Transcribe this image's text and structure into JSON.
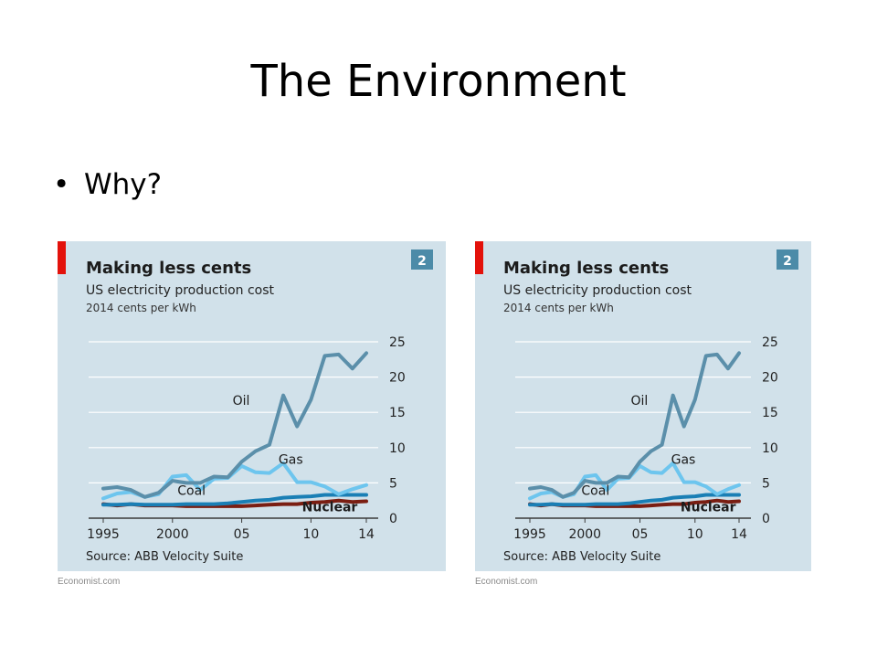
{
  "slide": {
    "title": "The Environment",
    "bullet_symbol": "•",
    "bullet_text": "Why?"
  },
  "chart_panel": {
    "credit": "Economist.com",
    "background_color": "#d1e1ea",
    "flag_color": "#e3120b",
    "badge_color": "#4c8ba8"
  },
  "chart_data": [
    {
      "type": "line",
      "title": "Making less cents",
      "subtitle": "US electricity production cost",
      "unit_label": "2014 cents per kWh",
      "badge": "2",
      "source": "Source: ABB Velocity Suite",
      "x": [
        1995,
        1996,
        1997,
        1998,
        1999,
        2000,
        2001,
        2002,
        2003,
        2004,
        2005,
        2006,
        2007,
        2008,
        2009,
        2010,
        2011,
        2012,
        2013,
        2014
      ],
      "x_ticks": [
        1995,
        2000,
        2005,
        2010,
        2014
      ],
      "x_tick_labels": [
        "1995",
        "2000",
        "05",
        "10",
        "14"
      ],
      "ylim": [
        0,
        25
      ],
      "y_ticks": [
        0,
        5,
        10,
        15,
        20,
        25
      ],
      "y_axis_position": "right",
      "grid": "horizontal",
      "series": [
        {
          "name": "Oil",
          "color": "#5b8faa",
          "values": [
            4.2,
            4.4,
            4.0,
            3.0,
            3.6,
            5.3,
            5.0,
            5.0,
            5.9,
            5.8,
            8.0,
            9.5,
            10.4,
            17.4,
            13.0,
            16.8,
            23.0,
            23.2,
            21.2,
            23.4
          ]
        },
        {
          "name": "Gas",
          "color": "#6dc5ee",
          "values": [
            2.8,
            3.5,
            3.7,
            3.0,
            3.4,
            5.9,
            6.1,
            4.0,
            5.6,
            5.7,
            7.4,
            6.5,
            6.4,
            7.8,
            5.1,
            5.1,
            4.5,
            3.4,
            4.1,
            4.7
          ]
        },
        {
          "name": "Coal",
          "color": "#1a7fb5",
          "values": [
            1.9,
            1.9,
            2.0,
            1.9,
            1.9,
            1.9,
            2.0,
            2.0,
            2.0,
            2.1,
            2.3,
            2.5,
            2.6,
            2.9,
            3.0,
            3.1,
            3.3,
            3.3,
            3.3,
            3.3
          ]
        },
        {
          "name": "Nuclear",
          "color": "#7a1e12",
          "values": [
            2.0,
            1.8,
            2.0,
            1.8,
            1.8,
            1.8,
            1.7,
            1.7,
            1.7,
            1.7,
            1.7,
            1.8,
            1.9,
            2.0,
            2.0,
            2.2,
            2.3,
            2.5,
            2.3,
            2.4
          ]
        }
      ]
    },
    {
      "type": "line",
      "title": "Making less cents",
      "subtitle": "US electricity production cost",
      "unit_label": "2014 cents per kWh",
      "badge": "2",
      "source": "Source: ABB Velocity Suite",
      "x": [
        1995,
        1996,
        1997,
        1998,
        1999,
        2000,
        2001,
        2002,
        2003,
        2004,
        2005,
        2006,
        2007,
        2008,
        2009,
        2010,
        2011,
        2012,
        2013,
        2014
      ],
      "x_ticks": [
        1995,
        2000,
        2005,
        2010,
        2014
      ],
      "x_tick_labels": [
        "1995",
        "2000",
        "05",
        "10",
        "14"
      ],
      "ylim": [
        0,
        25
      ],
      "y_ticks": [
        0,
        5,
        10,
        15,
        20,
        25
      ],
      "y_axis_position": "right",
      "grid": "horizontal",
      "series": [
        {
          "name": "Oil",
          "color": "#5b8faa",
          "values": [
            4.2,
            4.4,
            4.0,
            3.0,
            3.6,
            5.3,
            5.0,
            5.0,
            5.9,
            5.8,
            8.0,
            9.5,
            10.4,
            17.4,
            13.0,
            16.8,
            23.0,
            23.2,
            21.2,
            23.4
          ]
        },
        {
          "name": "Gas",
          "color": "#6dc5ee",
          "values": [
            2.8,
            3.5,
            3.7,
            3.0,
            3.4,
            5.9,
            6.1,
            4.0,
            5.6,
            5.7,
            7.4,
            6.5,
            6.4,
            7.8,
            5.1,
            5.1,
            4.5,
            3.4,
            4.1,
            4.7
          ]
        },
        {
          "name": "Coal",
          "color": "#1a7fb5",
          "values": [
            1.9,
            1.9,
            2.0,
            1.9,
            1.9,
            1.9,
            2.0,
            2.0,
            2.0,
            2.1,
            2.3,
            2.5,
            2.6,
            2.9,
            3.0,
            3.1,
            3.3,
            3.3,
            3.3,
            3.3
          ]
        },
        {
          "name": "Nuclear",
          "color": "#7a1e12",
          "values": [
            2.0,
            1.8,
            2.0,
            1.8,
            1.8,
            1.8,
            1.7,
            1.7,
            1.7,
            1.7,
            1.7,
            1.8,
            1.9,
            2.0,
            2.0,
            2.2,
            2.3,
            2.5,
            2.3,
            2.4
          ]
        }
      ]
    }
  ]
}
